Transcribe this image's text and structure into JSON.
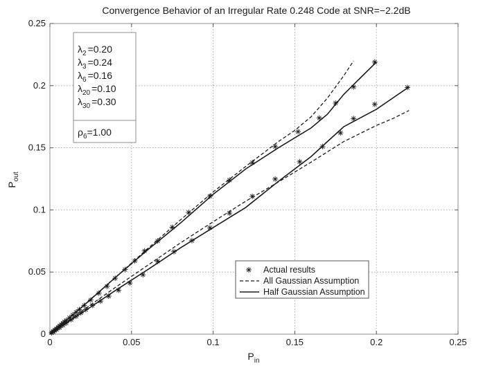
{
  "chart_data": {
    "type": "line",
    "title": "Convergence Behavior of an Irregular Rate 0.248 Code at SNR=−2.2dB",
    "xlabel": {
      "base": "P",
      "sub": "in"
    },
    "ylabel": {
      "base": "P",
      "sub": "out"
    },
    "xlim": [
      0,
      0.25
    ],
    "ylim": [
      0,
      0.25
    ],
    "x_ticks": [
      "0",
      "0.05",
      "0.1",
      "0.15",
      "0.2",
      "0.25"
    ],
    "y_ticks": [
      "0",
      "0.05",
      "0.1",
      "0.15",
      "0.2",
      "0.25"
    ],
    "grid": true,
    "legend_position": "lower-right",
    "parameters": [
      {
        "sym": "λ",
        "sub": "2",
        "value": "=0.20"
      },
      {
        "sym": "λ",
        "sub": "3",
        "value": "=0.24"
      },
      {
        "sym": "λ",
        "sub": "6",
        "value": "=0.16"
      },
      {
        "sym": "λ",
        "sub": "20",
        "value": "=0.10"
      },
      {
        "sym": "λ",
        "sub": "30",
        "value": "=0.30"
      }
    ],
    "rho": {
      "sym": "ρ",
      "sub": "6",
      "value": "=1.00"
    },
    "series": [
      {
        "name": "Actual results",
        "marker": "asterisk",
        "line": "none",
        "points": [
          [
            0.001,
            0.0011
          ],
          [
            0.002,
            0.0022
          ],
          [
            0.003,
            0.0033
          ],
          [
            0.004,
            0.0044
          ],
          [
            0.005,
            0.0055
          ],
          [
            0.006,
            0.0066
          ],
          [
            0.007,
            0.0077
          ],
          [
            0.008,
            0.0088
          ],
          [
            0.009,
            0.0099
          ],
          [
            0.01,
            0.011
          ],
          [
            0.012,
            0.0132
          ],
          [
            0.014,
            0.0154
          ],
          [
            0.016,
            0.0176
          ],
          [
            0.018,
            0.0198
          ],
          [
            0.021,
            0.0231
          ],
          [
            0.025,
            0.0275
          ],
          [
            0.03,
            0.033
          ],
          [
            0.035,
            0.0385
          ],
          [
            0.04,
            0.045
          ],
          [
            0.046,
            0.052
          ],
          [
            0.052,
            0.059
          ],
          [
            0.058,
            0.067
          ],
          [
            0.066,
            0.075
          ],
          [
            0.075,
            0.086
          ],
          [
            0.085,
            0.098
          ],
          [
            0.098,
            0.111
          ],
          [
            0.11,
            0.124
          ],
          [
            0.124,
            0.138
          ],
          [
            0.138,
            0.151
          ],
          [
            0.152,
            0.163
          ],
          [
            0.165,
            0.174
          ],
          [
            0.175,
            0.186
          ],
          [
            0.186,
            0.199
          ],
          [
            0.199,
            0.219
          ],
          [
            0.002,
            0.0018
          ],
          [
            0.004,
            0.0036
          ],
          [
            0.006,
            0.0054
          ],
          [
            0.008,
            0.0072
          ],
          [
            0.01,
            0.009
          ],
          [
            0.013,
            0.0117
          ],
          [
            0.016,
            0.0144
          ],
          [
            0.019,
            0.0171
          ],
          [
            0.022,
            0.0198
          ],
          [
            0.026,
            0.0231
          ],
          [
            0.031,
            0.0266
          ],
          [
            0.036,
            0.0306
          ],
          [
            0.042,
            0.0354
          ],
          [
            0.049,
            0.0412
          ],
          [
            0.057,
            0.0478
          ],
          [
            0.066,
            0.0587
          ],
          [
            0.076,
            0.0664
          ],
          [
            0.087,
            0.0753
          ],
          [
            0.098,
            0.0856
          ],
          [
            0.11,
            0.0974
          ],
          [
            0.124,
            0.1109
          ],
          [
            0.138,
            0.1248
          ],
          [
            0.153,
            0.1387
          ],
          [
            0.167,
            0.151
          ],
          [
            0.178,
            0.162
          ],
          [
            0.186,
            0.1735
          ],
          [
            0.199,
            0.185
          ],
          [
            0.219,
            0.1985
          ]
        ]
      },
      {
        "name": "All Gaussian Assumption",
        "marker": "none",
        "line": "dashed",
        "points": [
          [
            0,
            0
          ],
          [
            0.02,
            0.0225
          ],
          [
            0.04,
            0.0455
          ],
          [
            0.06,
            0.069
          ],
          [
            0.08,
            0.092
          ],
          [
            0.1,
            0.1145
          ],
          [
            0.12,
            0.135
          ],
          [
            0.14,
            0.155
          ],
          [
            0.15,
            0.164
          ],
          [
            0.16,
            0.175
          ],
          [
            0.17,
            0.19
          ],
          [
            0.18,
            0.208
          ],
          [
            0.186,
            0.22
          ]
        ]
      },
      {
        "name": "All Gaussian Assumption",
        "marker": "none",
        "line": "dashed",
        "points": [
          [
            0,
            0
          ],
          [
            0.02,
            0.019
          ],
          [
            0.04,
            0.0375
          ],
          [
            0.06,
            0.0555
          ],
          [
            0.08,
            0.0735
          ],
          [
            0.1,
            0.0905
          ],
          [
            0.12,
            0.107
          ],
          [
            0.14,
            0.1225
          ],
          [
            0.16,
            0.1385
          ],
          [
            0.18,
            0.155
          ],
          [
            0.2,
            0.168
          ],
          [
            0.21,
            0.1735
          ],
          [
            0.22,
            0.18
          ]
        ]
      },
      {
        "name": "Half Gaussian Assumption",
        "marker": "none",
        "line": "solid",
        "points": [
          [
            0,
            0
          ],
          [
            0.02,
            0.0222
          ],
          [
            0.04,
            0.0455
          ],
          [
            0.06,
            0.068
          ],
          [
            0.08,
            0.0895
          ],
          [
            0.1,
            0.1125
          ],
          [
            0.12,
            0.133
          ],
          [
            0.14,
            0.15
          ],
          [
            0.16,
            0.166
          ],
          [
            0.17,
            0.177
          ],
          [
            0.18,
            0.193
          ],
          [
            0.19,
            0.206
          ],
          [
            0.2,
            0.219
          ]
        ]
      },
      {
        "name": "Half Gaussian Assumption",
        "marker": "none",
        "line": "solid",
        "points": [
          [
            0,
            0
          ],
          [
            0.02,
            0.0175
          ],
          [
            0.04,
            0.035
          ],
          [
            0.06,
            0.052
          ],
          [
            0.08,
            0.0695
          ],
          [
            0.1,
            0.0858
          ],
          [
            0.12,
            0.102
          ],
          [
            0.14,
            0.123
          ],
          [
            0.16,
            0.143
          ],
          [
            0.17,
            0.155
          ],
          [
            0.18,
            0.167
          ],
          [
            0.2,
            0.181
          ],
          [
            0.22,
            0.199
          ]
        ]
      }
    ],
    "legend": [
      {
        "label": "Actual results",
        "style": "asterisk"
      },
      {
        "label": "All Gaussian Assumption",
        "style": "dashed"
      },
      {
        "label": "Half Gaussian Assumption",
        "style": "solid"
      }
    ],
    "colors": {
      "line": "#1a1a1a",
      "grid": "#9a9a9a",
      "frame": "#8c8c8c"
    }
  }
}
